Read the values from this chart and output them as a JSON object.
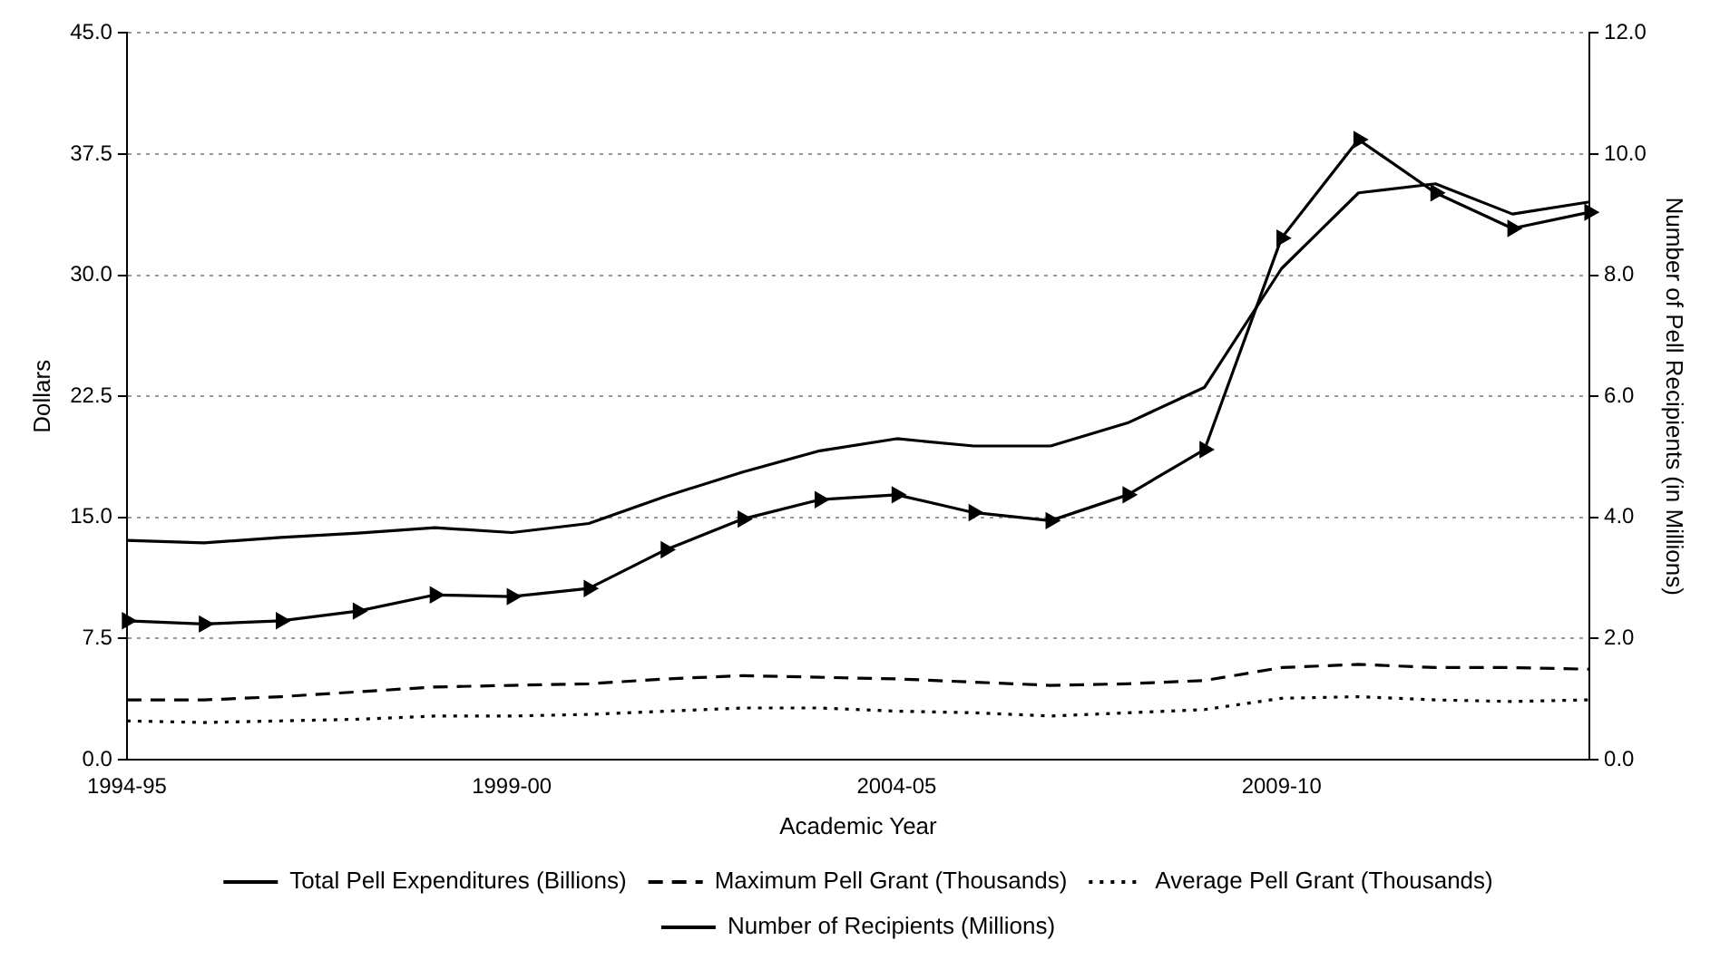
{
  "chart_data": {
    "type": "line",
    "xlabel": "Academic Year",
    "ylabel": "Dollars",
    "y2label": "Number of Pell Recipients (in Millions)",
    "categories": [
      "1994-95",
      null,
      null,
      null,
      null,
      "1999-00",
      null,
      null,
      null,
      null,
      "2004-05",
      null,
      null,
      null,
      null,
      "2009-10",
      null,
      null,
      null,
      null
    ],
    "series": [
      {
        "name": "Total Pell Expenditures (Billions)",
        "color": "#000000",
        "line_style": "solid",
        "marker": "triangle",
        "values": [
          8.6,
          8.4,
          8.6,
          9.2,
          10.2,
          10.1,
          10.6,
          13.0,
          14.9,
          16.1,
          16.4,
          15.3,
          14.8,
          16.4,
          19.2,
          32.3,
          38.4,
          35.1,
          32.9,
          33.9
        ]
      },
      {
        "name": "Maximum Pell Grant (Thousands)",
        "color": "#000000",
        "line_style": "dashed",
        "values": [
          3.7,
          3.7,
          3.9,
          4.2,
          4.5,
          4.6,
          4.7,
          5.0,
          5.2,
          5.1,
          5.0,
          4.8,
          4.6,
          4.7,
          4.9,
          5.7,
          5.9,
          5.7,
          5.7,
          5.6
        ]
      },
      {
        "name": "Average Pell Grant (Thousands)",
        "color": "#000000",
        "line_style": "dotted",
        "values": [
          2.4,
          2.3,
          2.4,
          2.5,
          2.7,
          2.7,
          2.8,
          3.0,
          3.2,
          3.2,
          3.0,
          2.9,
          2.7,
          2.9,
          3.1,
          3.8,
          3.9,
          3.7,
          3.6,
          3.7
        ]
      },
      {
        "name": "Number of Recipients (Millions)",
        "color": "#000000",
        "line_style": "solid",
        "axis": "y2",
        "values": [
          3.62,
          3.58,
          3.67,
          3.74,
          3.83,
          3.75,
          3.9,
          4.35,
          4.75,
          5.1,
          5.3,
          5.18,
          5.18,
          5.56,
          6.15,
          8.11,
          9.36,
          9.51,
          9.01,
          9.21
        ]
      }
    ],
    "ylim": [
      0,
      45
    ],
    "yticks": [
      {
        "value": 0,
        "label": "0.0"
      },
      {
        "value": 7.5,
        "label": "7.5"
      },
      {
        "value": 15,
        "label": "15.0"
      },
      {
        "value": 22.5,
        "label": "22.5"
      },
      {
        "value": 30,
        "label": "30.0"
      },
      {
        "value": 37.5,
        "label": "37.5"
      },
      {
        "value": 45,
        "label": "45.0"
      }
    ],
    "y2lim": [
      0,
      12
    ],
    "y2ticks": [
      {
        "value": 0,
        "label": "0.0"
      },
      {
        "value": 2,
        "label": "2.0"
      },
      {
        "value": 4,
        "label": "4.0"
      },
      {
        "value": 6,
        "label": "6.0"
      },
      {
        "value": 8,
        "label": "8.0"
      },
      {
        "value": 10,
        "label": "10.0"
      },
      {
        "value": 12,
        "label": "12.0"
      }
    ],
    "grid": "y",
    "legend": "bottom"
  }
}
